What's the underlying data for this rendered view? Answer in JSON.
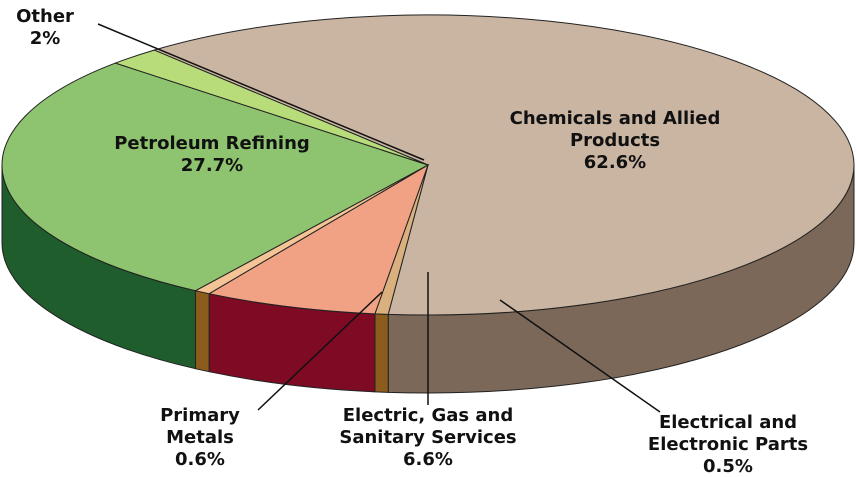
{
  "chart_data": {
    "type": "pie3d",
    "categories": [
      "Chemicals and Allied Products",
      "Electrical and Electronic Parts",
      "Electric, Gas and Sanitary Services",
      "Primary Metals",
      "Petroleum Refining",
      "Other"
    ],
    "values": [
      62.6,
      0.5,
      6.6,
      0.6,
      27.7,
      2
    ],
    "value_labels": [
      "62.6%",
      "0.5%",
      "6.6%",
      "0.6%",
      "27.7%",
      "2%"
    ],
    "colors": [
      "#c9b5a1",
      "#d9b07e",
      "#f2a284",
      "#f5c496",
      "#8ec46f",
      "#b8dc7a"
    ],
    "side_colors": [
      "#7b6858",
      "#8c5c1c",
      "#7e0a24",
      "#8c5c1c",
      "#1f5d2c",
      "#6c8f3a"
    ]
  }
}
